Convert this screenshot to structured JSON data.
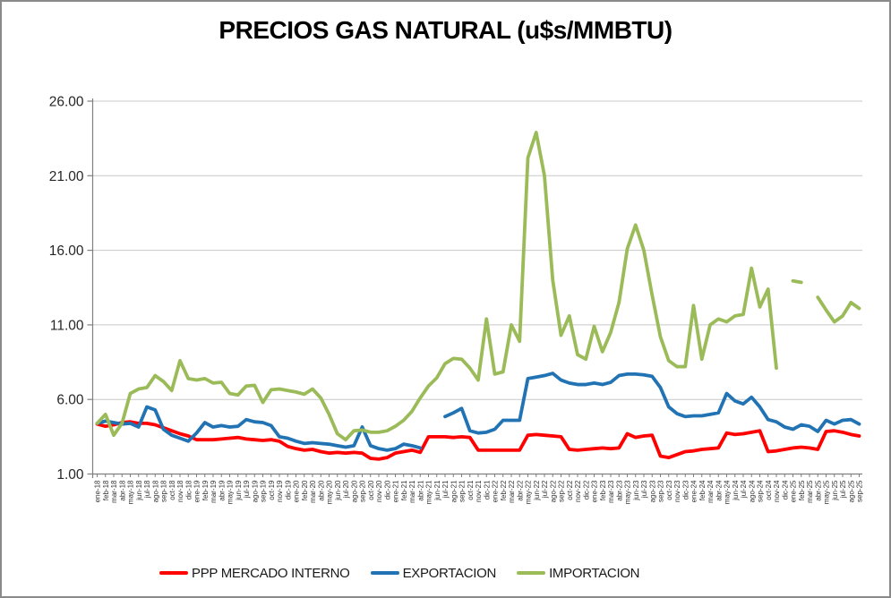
{
  "title": "PRECIOS GAS NATURAL (u$s/MMBTU)",
  "colors": {
    "ppp": "#FF0000",
    "exportacion": "#2173B4",
    "importacion": "#9BBB59",
    "gridline": "#C8C8C8",
    "axis": "#7F7F7F",
    "tick_label": "#333333",
    "y_label": "#262626"
  },
  "legend": {
    "items": [
      {
        "label": "PPP MERCADO INTERNO",
        "color_key": "ppp"
      },
      {
        "label": "EXPORTACION",
        "color_key": "exportacion"
      },
      {
        "label": "IMPORTACION",
        "color_key": "importacion"
      }
    ]
  },
  "chart_data": {
    "type": "line",
    "title": "PRECIOS GAS NATURAL (u$s/MMBTU)",
    "ylim": [
      1,
      26
    ],
    "grid": "horizontal",
    "legend_position": "bottom",
    "y_ticks": [
      {
        "v": 1,
        "label": "1.00"
      },
      {
        "v": 6,
        "label": "6.00"
      },
      {
        "v": 11,
        "label": "11.00"
      },
      {
        "v": 16,
        "label": "16.00"
      },
      {
        "v": 21,
        "label": "21.00"
      },
      {
        "v": 26,
        "label": "26.00"
      }
    ],
    "categories": [
      "ene-18",
      "feb-18",
      "mar-18",
      "abr-18",
      "may-18",
      "jun-18",
      "jul-18",
      "ago-18",
      "sep-18",
      "oct-18",
      "nov-18",
      "dic-18",
      "ene-19",
      "feb-19",
      "mar-19",
      "abr-19",
      "may-19",
      "jun-19",
      "jul-19",
      "ago-19",
      "sep-19",
      "oct-19",
      "nov-19",
      "dic-19",
      "ene-20",
      "feb-20",
      "mar-20",
      "abr-20",
      "may-20",
      "jun-20",
      "jul-20",
      "ago-20",
      "sep-20",
      "oct-20",
      "nov-20",
      "dic-20",
      "ene-21",
      "feb-21",
      "mar-21",
      "abr-21",
      "may-21",
      "jun-21",
      "jul-21",
      "ago-21",
      "sep-21",
      "oct-21",
      "nov-21",
      "dic-21",
      "ene-22",
      "feb-22",
      "mar-22",
      "abr-22",
      "may-22",
      "jun-22",
      "jul-22",
      "ago-22",
      "sep-22",
      "oct-22",
      "nov-22",
      "dic-22",
      "ene-23",
      "feb-23",
      "mar-23",
      "abr-23",
      "may-23",
      "jun-23",
      "jul-23",
      "ago-23",
      "sep-23",
      "oct-23",
      "nov-23",
      "dic-23",
      "ene-24",
      "feb-24",
      "mar-24",
      "abr-24",
      "may-24",
      "jun-24",
      "jul-24",
      "ago-24",
      "sep-24",
      "oct-24",
      "nov-24",
      "dic-24",
      "ene-25",
      "feb-25",
      "mar-25",
      "abr-25",
      "may-25",
      "jun-25",
      "jul-25",
      "ago-25",
      "sep-25"
    ],
    "series": [
      {
        "name": "PPP MERCADO INTERNO",
        "color_key": "ppp",
        "values": [
          4.35,
          4.2,
          4.3,
          4.45,
          4.5,
          4.4,
          4.4,
          4.3,
          4.1,
          3.9,
          3.7,
          3.55,
          3.3,
          3.3,
          3.3,
          3.35,
          3.4,
          3.45,
          3.35,
          3.3,
          3.25,
          3.3,
          3.2,
          2.85,
          2.7,
          2.6,
          2.65,
          2.5,
          2.4,
          2.45,
          2.4,
          2.45,
          2.4,
          2.05,
          2.0,
          2.1,
          2.4,
          2.5,
          2.6,
          2.45,
          3.5,
          3.5,
          3.5,
          3.45,
          3.5,
          3.45,
          2.6,
          2.6,
          2.6,
          2.6,
          2.6,
          2.6,
          3.6,
          3.65,
          3.6,
          3.55,
          3.5,
          2.65,
          2.6,
          2.65,
          2.7,
          2.75,
          2.7,
          2.75,
          3.7,
          3.45,
          3.55,
          3.6,
          2.2,
          2.1,
          2.3,
          2.5,
          2.55,
          2.65,
          2.7,
          2.75,
          3.75,
          3.65,
          3.7,
          3.8,
          3.9,
          2.5,
          2.55,
          2.65,
          2.75,
          2.8,
          2.75,
          2.65,
          3.85,
          3.9,
          3.8,
          3.65,
          3.55
        ]
      },
      {
        "name": "EXPORTACION",
        "color_key": "exportacion",
        "values": [
          4.4,
          4.55,
          4.45,
          4.35,
          4.4,
          4.15,
          5.5,
          5.3,
          4.0,
          3.6,
          3.4,
          3.2,
          3.75,
          4.45,
          4.15,
          4.25,
          4.15,
          4.2,
          4.65,
          4.5,
          4.45,
          4.25,
          3.5,
          3.4,
          3.2,
          3.05,
          3.1,
          3.05,
          3.0,
          2.9,
          2.8,
          2.9,
          4.15,
          2.9,
          2.7,
          2.6,
          2.7,
          3.0,
          2.9,
          2.75,
          null,
          null,
          4.85,
          5.1,
          5.4,
          3.9,
          3.75,
          3.8,
          4.0,
          4.6,
          4.6,
          4.6,
          7.4,
          7.5,
          7.6,
          7.75,
          7.3,
          7.1,
          7.0,
          7.0,
          7.1,
          7.0,
          7.15,
          7.6,
          7.7,
          7.7,
          7.65,
          7.55,
          6.8,
          5.5,
          5.05,
          4.85,
          4.9,
          4.9,
          5.0,
          5.1,
          6.4,
          5.9,
          5.7,
          6.15,
          5.5,
          4.65,
          4.5,
          4.15,
          4.0,
          4.3,
          4.2,
          3.85,
          4.6,
          4.35,
          4.6,
          4.65,
          4.35
        ]
      },
      {
        "name": "IMPORTACION",
        "color_key": "importacion",
        "values": [
          4.4,
          5.0,
          3.6,
          4.4,
          6.4,
          6.7,
          6.8,
          7.6,
          7.2,
          6.6,
          8.6,
          7.4,
          7.3,
          7.4,
          7.1,
          7.15,
          6.4,
          6.3,
          6.9,
          6.95,
          5.8,
          6.65,
          6.7,
          6.6,
          6.5,
          6.35,
          6.7,
          6.1,
          5.0,
          3.7,
          3.3,
          3.9,
          3.95,
          3.8,
          3.8,
          3.9,
          4.2,
          4.6,
          5.2,
          6.1,
          6.9,
          7.45,
          8.4,
          8.75,
          8.7,
          8.1,
          7.3,
          11.4,
          7.7,
          7.85,
          11.0,
          9.9,
          22.2,
          23.9,
          21.0,
          14.0,
          10.3,
          11.6,
          9.0,
          8.7,
          10.9,
          9.2,
          10.5,
          12.5,
          16.1,
          17.7,
          16.0,
          13.0,
          10.2,
          8.6,
          8.2,
          8.2,
          12.3,
          8.7,
          11.0,
          11.4,
          11.2,
          11.6,
          11.7,
          14.8,
          12.2,
          13.4,
          8.1,
          null,
          13.95,
          13.85,
          null,
          12.85,
          12.0,
          11.2,
          11.6,
          12.5,
          12.1
        ]
      }
    ]
  }
}
